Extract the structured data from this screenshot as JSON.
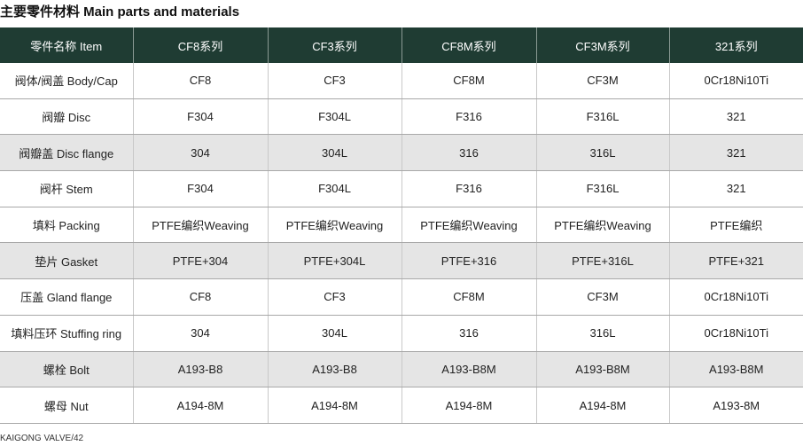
{
  "title": "主要零件材料 Main parts and materials",
  "table": {
    "header": [
      "零件名称 Item",
      "CF8系列",
      "CF3系列",
      "CF8M系列",
      "CF3M系列",
      "321系列"
    ],
    "rows": [
      [
        "阀体/阀盖 Body/Cap",
        "CF8",
        "CF3",
        "CF8M",
        "CF3M",
        "0Cr18Ni10Ti"
      ],
      [
        "阀瓣 Disc",
        "F304",
        "F304L",
        "F316",
        "F316L",
        "321"
      ],
      [
        "阀瓣盖 Disc flange",
        "304",
        "304L",
        "316",
        "316L",
        "321"
      ],
      [
        "阀杆 Stem",
        "F304",
        "F304L",
        "F316",
        "F316L",
        "321"
      ],
      [
        "填料 Packing",
        "PTFE编织Weaving",
        "PTFE编织Weaving",
        "PTFE编织Weaving",
        "PTFE编织Weaving",
        "PTFE编织"
      ],
      [
        "垫片 Gasket",
        "PTFE+304",
        "PTFE+304L",
        "PTFE+316",
        "PTFE+316L",
        "PTFE+321"
      ],
      [
        "压盖 Gland flange",
        "CF8",
        "CF3",
        "CF8M",
        "CF3M",
        "0Cr18Ni10Ti"
      ],
      [
        "填料压环 Stuffing ring",
        "304",
        "304L",
        "316",
        "316L",
        "0Cr18Ni10Ti"
      ],
      [
        "螺栓 Bolt",
        "A193-B8",
        "A193-B8",
        "A193-B8M",
        "A193-B8M",
        "A193-B8M"
      ],
      [
        "螺母 Nut",
        "A194-8M",
        "A194-8M",
        "A194-8M",
        "A194-8M",
        "A193-8M"
      ]
    ]
  },
  "footer": "KAIGONG VALVE/42"
}
